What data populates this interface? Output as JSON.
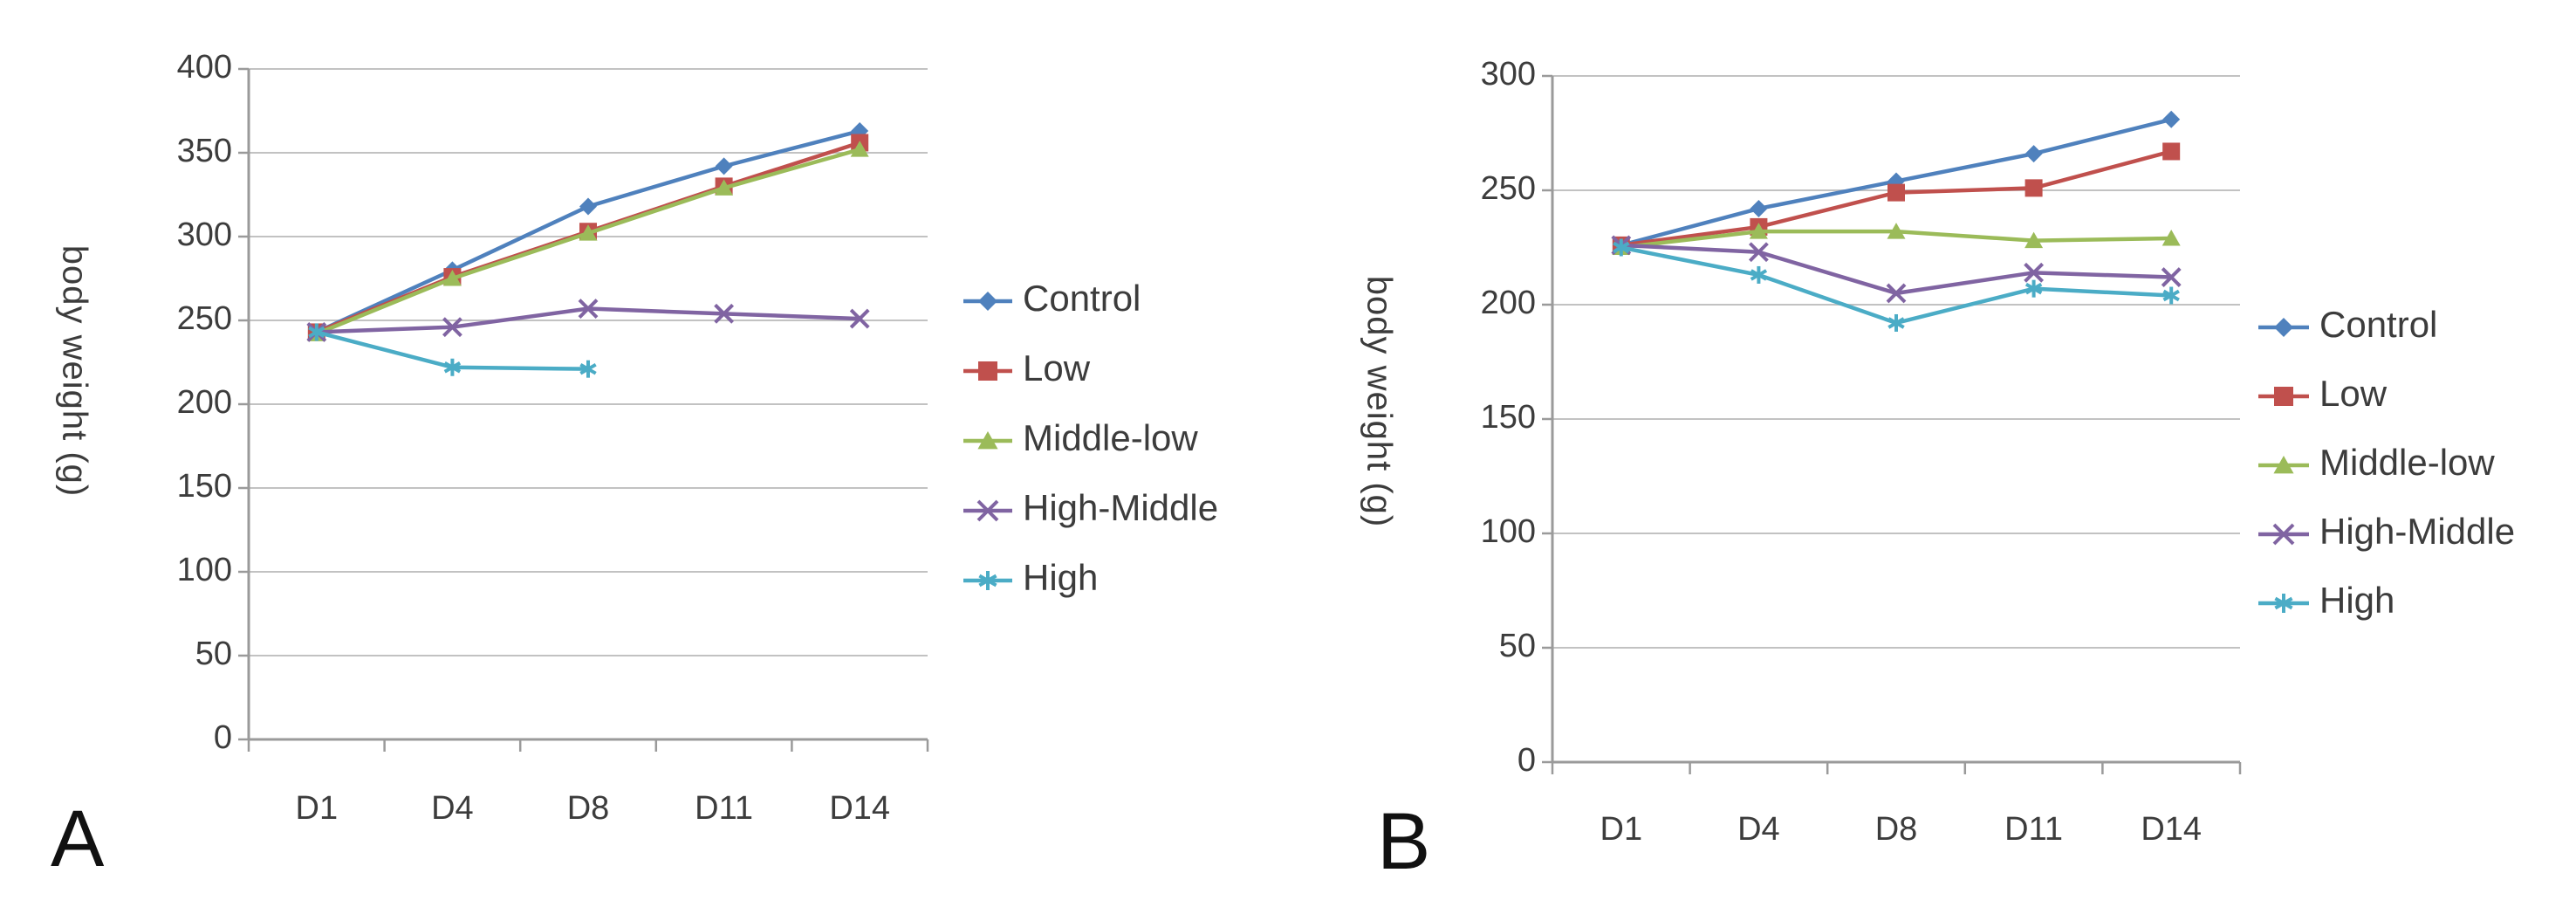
{
  "figure_caption_letters": [
    "A",
    "B"
  ],
  "colors": {
    "grid": "#c2c2c2",
    "axis": "#9a9a9a",
    "tick_text": "#3c3c3c",
    "legend_text": "#3c3c3c"
  },
  "chart_data": [
    {
      "type": "line",
      "panel_label": "A",
      "title": "",
      "xlabel": "",
      "ylabel": "body weight (g)",
      "ylim": [
        0,
        400
      ],
      "yticks": [
        0,
        50,
        100,
        150,
        200,
        250,
        300,
        350,
        400
      ],
      "categories": [
        "D1",
        "D4",
        "D8",
        "D11",
        "D14"
      ],
      "grid": true,
      "legend_position": "right",
      "series": [
        {
          "name": "Control",
          "color": "#4F81BD",
          "marker": "diamond",
          "values": [
            243,
            280,
            318,
            342,
            363
          ]
        },
        {
          "name": "Low",
          "color": "#C0504D",
          "marker": "square",
          "values": [
            243,
            276,
            303,
            330,
            356
          ]
        },
        {
          "name": "Middle-low",
          "color": "#9BBB59",
          "marker": "triangle",
          "values": [
            242,
            275,
            302,
            329,
            352
          ]
        },
        {
          "name": "High-Middle",
          "color": "#8064A2",
          "marker": "x",
          "values": [
            243,
            246,
            257,
            254,
            251
          ]
        },
        {
          "name": "High",
          "color": "#4BACC6",
          "marker": "asterisk",
          "values": [
            243,
            222,
            221,
            null,
            null
          ]
        }
      ]
    },
    {
      "type": "line",
      "panel_label": "B",
      "title": "",
      "xlabel": "",
      "ylabel": "body weight (g)",
      "ylim": [
        0,
        300
      ],
      "yticks": [
        0,
        50,
        100,
        150,
        200,
        250,
        300
      ],
      "categories": [
        "D1",
        "D4",
        "D8",
        "D11",
        "D14"
      ],
      "grid": true,
      "legend_position": "right",
      "series": [
        {
          "name": "Control",
          "color": "#4F81BD",
          "marker": "diamond",
          "values": [
            226,
            242,
            254,
            266,
            281
          ]
        },
        {
          "name": "Low",
          "color": "#C0504D",
          "marker": "square",
          "values": [
            226,
            234,
            249,
            251,
            267
          ]
        },
        {
          "name": "Middle-low",
          "color": "#9BBB59",
          "marker": "triangle",
          "values": [
            225,
            232,
            232,
            228,
            229
          ]
        },
        {
          "name": "High-Middle",
          "color": "#8064A2",
          "marker": "x",
          "values": [
            226,
            223,
            205,
            214,
            212
          ]
        },
        {
          "name": "High",
          "color": "#4BACC6",
          "marker": "asterisk",
          "values": [
            225,
            213,
            192,
            207,
            204
          ]
        }
      ]
    }
  ]
}
